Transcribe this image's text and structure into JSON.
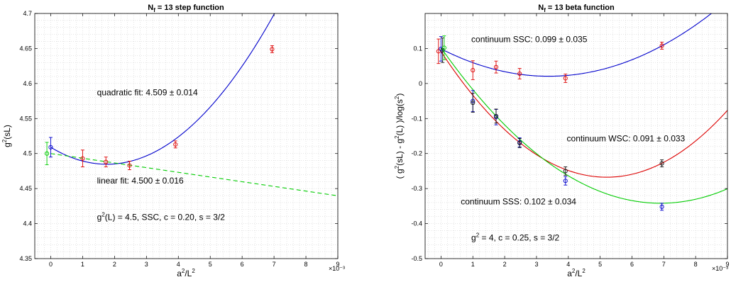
{
  "chart_data": [
    {
      "type": "scatter",
      "title": "N_f = 13   step function",
      "title_parts": {
        "base": "N",
        "sub": "f",
        "rest": " = 13   step function"
      },
      "xlabel": "a²/L²",
      "xlabel_parts": {
        "a": "a",
        "a_sup": "2",
        "slash": "/L",
        "l_sup": "2"
      },
      "ylabel": "g²(sL)",
      "ylabel_parts": {
        "g": "g",
        "sup": "2",
        "rest": "(sL)"
      },
      "x_multiplier": "×10⁻³",
      "xlim": [
        -0.5,
        9
      ],
      "ylim": [
        4.35,
        4.7
      ],
      "x_ticks": [
        0,
        1,
        2,
        3,
        4,
        5,
        6,
        7,
        8,
        9
      ],
      "y_ticks": [
        4.35,
        4.4,
        4.45,
        4.5,
        4.55,
        4.6,
        4.65,
        4.7
      ],
      "grid": true,
      "series": [
        {
          "color": "#dd0000",
          "x": [
            1.0,
            1.73,
            2.47,
            3.91,
            6.94
          ],
          "y": [
            4.493,
            4.488,
            4.483,
            4.513,
            4.649
          ],
          "err": [
            0.012,
            0.007,
            0.006,
            0.005,
            0.005
          ]
        },
        {
          "color": "#0000cc",
          "x": [
            0.0
          ],
          "y": [
            4.509
          ],
          "err": [
            0.014
          ]
        },
        {
          "color": "#00cc00",
          "x": [
            -0.12
          ],
          "y": [
            4.5
          ],
          "err": [
            0.016
          ]
        }
      ],
      "fits": [
        {
          "kind": "quadratic",
          "color": "#0000cc",
          "coef": [
            4.509,
            -0.0275,
            0.0078
          ],
          "x_range": [
            0,
            9
          ],
          "dashed": false
        },
        {
          "kind": "linear",
          "color": "#00cc00",
          "coef": [
            4.5,
            -0.0067
          ],
          "x_range": [
            0,
            9
          ],
          "dashed": true
        }
      ],
      "annotations": [
        {
          "text": "quadratic fit:  4.509 ± 0.014",
          "x": 1.45,
          "y": 4.583
        },
        {
          "text": "linear fit:  4.500 ± 0.016",
          "x": 1.45,
          "y": 4.457
        },
        {
          "text": "g²(L) = 4.5, SSC, c = 0.20, s = 3/2",
          "x": 1.45,
          "y": 4.405
        }
      ],
      "annotation3_parts": {
        "g": "g",
        "sup": "2",
        "rest": "(L) = 4.5, SSC, c = 0.20, s = 3/2"
      }
    },
    {
      "type": "scatter",
      "title": "N_f = 13   beta function",
      "title_parts": {
        "base": "N",
        "sub": "f",
        "rest": " = 13   beta function"
      },
      "xlabel": "a²/L²",
      "xlabel_parts": {
        "a": "a",
        "a_sup": "2",
        "slash": "/L",
        "l_sup": "2"
      },
      "ylabel": "( g²(sL) - g²(L) )/log(s²)",
      "ylabel_parts": {
        "p1": "( g",
        "s1": "2",
        "p2": "(sL) - g",
        "s2": "2",
        "p3": "(L) )/log(s",
        "s3": "2",
        "p4": ")"
      },
      "x_multiplier": "×10⁻³",
      "xlim": [
        -0.5,
        9
      ],
      "ylim": [
        -0.5,
        0.2
      ],
      "x_ticks": [
        0,
        1,
        2,
        3,
        4,
        5,
        6,
        7,
        8,
        9
      ],
      "y_ticks": [
        -0.5,
        -0.4,
        -0.3,
        -0.2,
        -0.1,
        0,
        0.1
      ],
      "grid": true,
      "series": [
        {
          "color": "#dd0000",
          "x": [
            -0.08,
            1.0,
            1.73,
            2.47,
            3.91,
            6.94
          ],
          "y": [
            0.092,
            0.038,
            0.047,
            0.028,
            0.015,
            0.108
          ],
          "err": [
            0.035,
            0.027,
            0.017,
            0.015,
            0.012,
            0.01
          ]
        },
        {
          "color": "#0000cc",
          "x": [
            0.0,
            1.0,
            1.73,
            2.47,
            3.91,
            6.94
          ],
          "y": [
            0.099,
            -0.05,
            -0.096,
            -0.168,
            -0.278,
            -0.352
          ],
          "err": [
            0.035,
            0.03,
            0.022,
            0.013,
            0.012,
            0.01
          ]
        },
        {
          "color": "#111111",
          "x": [
            0.05,
            1.0,
            1.73,
            2.47,
            3.91,
            6.94
          ],
          "y": [
            0.095,
            -0.055,
            -0.093,
            -0.17,
            -0.25,
            -0.228
          ],
          "err": [
            0.035,
            0.027,
            0.02,
            0.013,
            0.012,
            0.01
          ]
        },
        {
          "color": "#00cc00",
          "x": [
            0.1
          ],
          "y": [
            0.102
          ],
          "err": [
            0.034
          ]
        }
      ],
      "fits": [
        {
          "kind": "quadratic",
          "color": "#0000cc",
          "coef": [
            0.099,
            -0.0463,
            0.00685
          ],
          "x_range": [
            0,
            9
          ],
          "dashed": false
        },
        {
          "kind": "quadratic",
          "color": "#dd0000",
          "coef": [
            0.091,
            -0.1378,
            0.01324
          ],
          "x_range": [
            0,
            9
          ],
          "dashed": false
        },
        {
          "kind": "quadratic",
          "color": "#00cc00",
          "coef": [
            0.102,
            -0.1287,
            0.00933
          ],
          "x_range": [
            0,
            9
          ],
          "dashed": false
        }
      ],
      "annotations": [
        {
          "text": "continuum SSC:  0.099 ± 0.035",
          "x": 0.95,
          "y": 0.118
        },
        {
          "text": "continuum WSC:  0.091 ± 0.033",
          "x": 3.95,
          "y": -0.165
        },
        {
          "text": "continuum SSS:  0.102 ± 0.034",
          "x": 0.62,
          "y": -0.345
        },
        {
          "text": "g² = 4, c = 0.25, s = 3/2",
          "x": 0.95,
          "y": -0.448
        }
      ],
      "annotation4_parts": {
        "g": "g",
        "sup": "2",
        "rest": " = 4, c = 0.25, s = 3/2"
      }
    }
  ]
}
